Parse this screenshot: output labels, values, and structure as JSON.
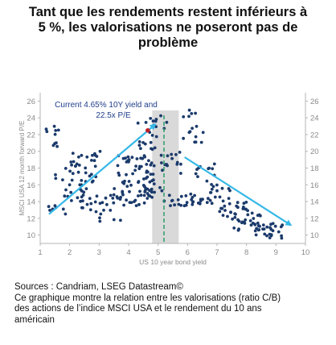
{
  "title_lines": [
    "Tant que les rendements restent inférieurs à",
    "5 %, les valorisations ne poseront pas de",
    "problème"
  ],
  "source_lines": [
    "Sources : Candriam, LSEG Datastream©",
    "Ce graphique montre la relation entre les valorisations (ratio C/B)",
    "des actions de l’indice MSCI USA et le rendement du 10 ans",
    "américain"
  ],
  "colors": {
    "points": "#1b3a6b",
    "current_point": "#c0202a",
    "trend_arrows": "#35b8e8",
    "shaded_band": "#d9d9d9",
    "vertical_line": "#2e9e6b",
    "annotation": "#1f3d8a",
    "axis_text": "#8a8a8a"
  },
  "chart_data": {
    "type": "scatter",
    "xlabel": "US 10 year bond yield",
    "ylabel": "MSCI USA 12 month forward P/E",
    "xlim": [
      1,
      10
    ],
    "ylim": [
      9,
      27
    ],
    "x_ticks": [
      1,
      2,
      3,
      4,
      5,
      6,
      7,
      8,
      9,
      10
    ],
    "y_ticks": [
      10,
      12,
      14,
      16,
      18,
      20,
      22,
      24,
      26
    ],
    "grid": false,
    "legend": "none",
    "annotation": {
      "lines": [
        "Current 4.65% 10Y yield and",
        "22.5x P/E"
      ],
      "point": {
        "x": 4.65,
        "y": 22.5
      }
    },
    "shaded_band_x": [
      4.8,
      5.7
    ],
    "vertical_line_x": 5.2,
    "trend_arrows": [
      {
        "from": {
          "x": 1.3,
          "y": 12.5
        },
        "to": {
          "x": 4.9,
          "y": 23.2
        }
      },
      {
        "from": {
          "x": 5.9,
          "y": 19.3
        },
        "to": {
          "x": 9.5,
          "y": 11.2
        }
      }
    ],
    "clusters": [
      {
        "x": [
          1.1,
          1.7
        ],
        "y": [
          20,
          23
        ],
        "n": 10
      },
      {
        "x": [
          1.2,
          2.0
        ],
        "y": [
          12,
          15
        ],
        "n": 8
      },
      {
        "x": [
          1.5,
          2.8
        ],
        "y": [
          14,
          19
        ],
        "n": 30
      },
      {
        "x": [
          2.0,
          3.3
        ],
        "y": [
          16.5,
          20
        ],
        "n": 20
      },
      {
        "x": [
          2.3,
          3.5
        ],
        "y": [
          13,
          15
        ],
        "n": 15
      },
      {
        "x": [
          2.8,
          3.8
        ],
        "y": [
          11.2,
          13
        ],
        "n": 8
      },
      {
        "x": [
          3.3,
          4.0
        ],
        "y": [
          13.5,
          16
        ],
        "n": 15
      },
      {
        "x": [
          3.6,
          4.9
        ],
        "y": [
          16,
          19.5
        ],
        "n": 40
      },
      {
        "x": [
          4.0,
          4.8
        ],
        "y": [
          13.5,
          16
        ],
        "n": 25
      },
      {
        "x": [
          4.3,
          5.0
        ],
        "y": [
          20,
          24
        ],
        "n": 15
      },
      {
        "x": [
          4.8,
          5.4
        ],
        "y": [
          21.5,
          24.5
        ],
        "n": 8
      },
      {
        "x": [
          4.5,
          5.2
        ],
        "y": [
          15,
          18.5
        ],
        "n": 15
      },
      {
        "x": [
          5.0,
          5.8
        ],
        "y": [
          17,
          20
        ],
        "n": 15
      },
      {
        "x": [
          5.2,
          6.5
        ],
        "y": [
          13.5,
          15
        ],
        "n": 25
      },
      {
        "x": [
          5.8,
          6.6
        ],
        "y": [
          21,
          25
        ],
        "n": 15
      },
      {
        "x": [
          6.2,
          7.0
        ],
        "y": [
          15,
          18.5
        ],
        "n": 15
      },
      {
        "x": [
          6.5,
          7.5
        ],
        "y": [
          13.5,
          16
        ],
        "n": 15
      },
      {
        "x": [
          7.0,
          8.0
        ],
        "y": [
          11.5,
          14
        ],
        "n": 25
      },
      {
        "x": [
          7.5,
          8.5
        ],
        "y": [
          10.5,
          13
        ],
        "n": 25
      },
      {
        "x": [
          8.3,
          9.3
        ],
        "y": [
          9.6,
          11.5
        ],
        "n": 25
      }
    ]
  }
}
